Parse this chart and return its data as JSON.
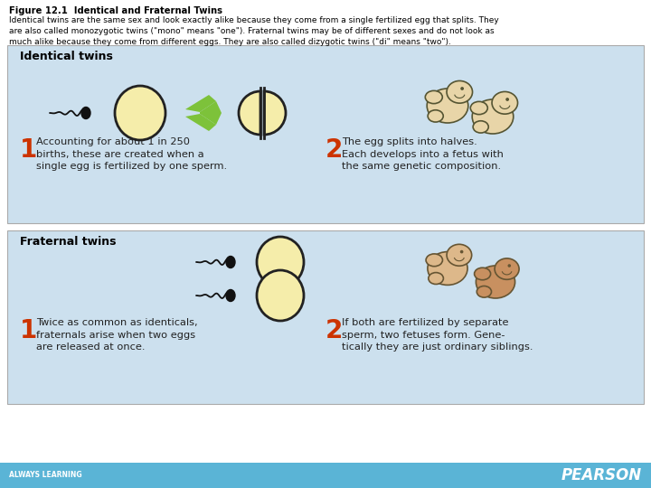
{
  "title_bold": "Figure 12.1  Identical and Fraternal Twins",
  "title_body": "Identical twins are the same sex and look exactly alike because they come from a single fertilized egg that splits. They\nare also called monozygotic twins (\"mono\" means \"one\"). Fraternal twins may be of different sexes and do not look as\nmuch alike because they come from different eggs. They are also called dizygotic twins (\"di\" means \"two\").",
  "bg_color": "#ffffff",
  "panel_color": "#cce0ee",
  "footer_color": "#5ab4d6",
  "footer_text_left": "ALWAYS LEARNING",
  "footer_text_right": "PEARSON",
  "identical_label": "Identical twins",
  "fraternal_label": "Fraternal twins",
  "identical_text1": "Accounting for about 1 in 250\nbirths, these are created when a\nsingle egg is fertilized by one sperm.",
  "identical_text2": "The egg splits into halves.\nEach develops into a fetus with\nthe same genetic composition.",
  "fraternal_text1": "Twice as common as identicals,\nfraternals arise when two eggs\nare released at once.",
  "fraternal_text2": "If both are fertilized by separate\nsperm, two fetuses form. Gene-\ntically they are just ordinary siblings.",
  "egg_fill": "#f5edaa",
  "egg_edge": "#222222",
  "sperm_color": "#111111",
  "arrow_green": "#7dc23a",
  "fetus_id_fill": "#e8d5a8",
  "fetus_id_edge": "#555533",
  "fetus_fr1_fill": "#ddb88a",
  "fetus_fr2_fill": "#c89060",
  "fetus_fr_edge": "#665533",
  "num_color": "#cc3300",
  "text_color": "#222222"
}
